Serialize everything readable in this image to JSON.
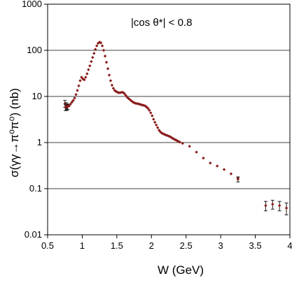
{
  "chart_data": {
    "type": "scatter",
    "annotation": "|cos θ*| < 0.8",
    "xlabel": "W (GeV)",
    "ylabel": "σ(γγ→π⁰π⁰) (nb)",
    "xlim": [
      0.5,
      4
    ],
    "ylim": [
      0.01,
      1000
    ],
    "y_scale": "log",
    "grid": "horizontal",
    "x_tick_labels": [
      "0.5",
      "1",
      "1.5",
      "2",
      "2.5",
      "3",
      "3.5",
      "4"
    ],
    "y_tick_labels": [
      "0.01",
      "0.1",
      "1",
      "10",
      "100",
      "1000"
    ],
    "colors": {
      "points": "#8b1a1a",
      "error_bars": "#1a1a1a",
      "grid": "#000000"
    },
    "series": [
      {
        "x": [
          0.77,
          0.79,
          0.81,
          0.83,
          0.85,
          0.87,
          0.89,
          0.91,
          0.93,
          0.95,
          0.97,
          0.99,
          1.01,
          1.03,
          1.05,
          1.07,
          1.09,
          1.11,
          1.13,
          1.15,
          1.17,
          1.19,
          1.21,
          1.23,
          1.25,
          1.27,
          1.29,
          1.31,
          1.33,
          1.35,
          1.37,
          1.39,
          1.41,
          1.43,
          1.45,
          1.47,
          1.49,
          1.51,
          1.53,
          1.55,
          1.57,
          1.59,
          1.61,
          1.63,
          1.65,
          1.67,
          1.69,
          1.71,
          1.73,
          1.75,
          1.77,
          1.79,
          1.81,
          1.83,
          1.85,
          1.87,
          1.89,
          1.91,
          1.93,
          1.95,
          1.97,
          1.99,
          2.01,
          2.03,
          2.05,
          2.07,
          2.09,
          2.11,
          2.13,
          2.15,
          2.17,
          2.19,
          2.21,
          2.23,
          2.25,
          2.27,
          2.29,
          2.31,
          2.33,
          2.35,
          2.37,
          2.39,
          2.41,
          2.45,
          2.55,
          2.65,
          2.75,
          2.85,
          2.95,
          3.05,
          3.15,
          3.25
        ],
        "y": [
          6.5,
          6.6,
          6.2,
          6.8,
          7.5,
          8.2,
          9.2,
          11.0,
          13.5,
          17.0,
          22.0,
          26.0,
          24.0,
          23.0,
          26.0,
          31.0,
          38.0,
          46.0,
          57.0,
          70.0,
          86.0,
          105.0,
          125.0,
          142.0,
          150.0,
          145.0,
          125.0,
          100.0,
          75.0,
          55.0,
          40.0,
          29.0,
          22.0,
          17.5,
          15.0,
          13.5,
          12.8,
          12.3,
          12.0,
          12.1,
          12.3,
          12.2,
          11.5,
          10.5,
          9.6,
          9.0,
          8.5,
          8.0,
          7.6,
          7.3,
          7.1,
          7.0,
          6.9,
          6.8,
          6.6,
          6.5,
          6.4,
          6.2,
          5.9,
          5.5,
          5.0,
          4.4,
          3.8,
          3.2,
          2.75,
          2.4,
          2.1,
          1.85,
          1.7,
          1.6,
          1.55,
          1.5,
          1.45,
          1.42,
          1.38,
          1.34,
          1.28,
          1.22,
          1.18,
          1.14,
          1.1,
          1.06,
          1.02,
          0.96,
          0.83,
          0.62,
          0.46,
          0.36,
          0.31,
          0.26,
          0.21,
          0.17
        ]
      },
      {
        "x": [
          0.75,
          0.76,
          0.77,
          0.78,
          0.79,
          3.25
        ],
        "y": [
          7.0,
          5.8,
          6.3,
          5.9,
          6.0,
          0.16
        ],
        "y_err": [
          1.2,
          0.9,
          1.0,
          0.9,
          0.8,
          0.02
        ]
      },
      {
        "x": [
          3.65,
          3.75,
          3.85,
          3.95
        ],
        "y": [
          0.043,
          0.046,
          0.043,
          0.038
        ],
        "y_err": [
          0.01,
          0.01,
          0.01,
          0.011
        ]
      }
    ]
  }
}
